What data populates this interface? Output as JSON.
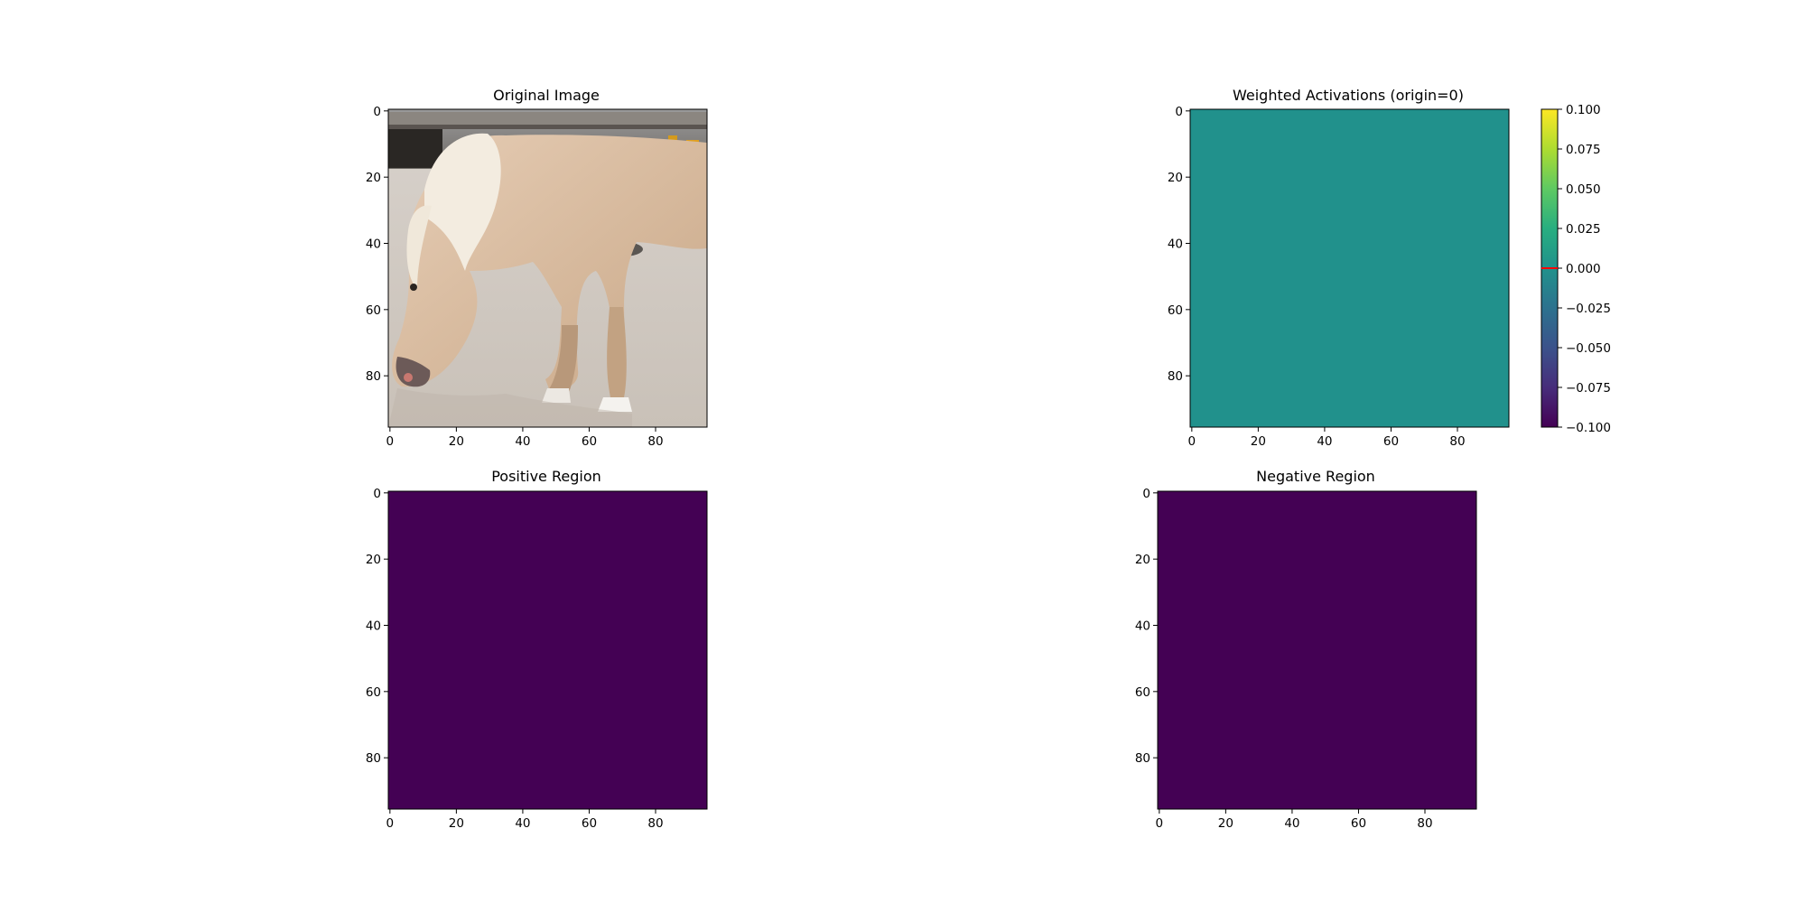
{
  "chart_data": [
    {
      "type": "image",
      "title": "Original Image",
      "content": "photo-horse",
      "xlim": [
        0,
        96
      ],
      "ylim": [
        96,
        0
      ],
      "xticks": [
        "0",
        "20",
        "40",
        "60",
        "80"
      ],
      "yticks": [
        "0",
        "20",
        "40",
        "60",
        "80"
      ]
    },
    {
      "type": "heatmap",
      "title": "Weighted Activations (origin=0)",
      "uniform_value": 0,
      "colormap": "viridis",
      "xlim": [
        0,
        96
      ],
      "ylim": [
        96,
        0
      ],
      "xticks": [
        "0",
        "20",
        "40",
        "60",
        "80"
      ],
      "yticks": [
        "0",
        "20",
        "40",
        "60",
        "80"
      ],
      "colorbar": {
        "range": [
          -0.1,
          0.1
        ],
        "ticks": [
          "−0.100",
          "−0.075",
          "−0.050",
          "−0.025",
          "0.000",
          "0.025",
          "0.050",
          "0.075",
          "0.100"
        ],
        "marker_value": 0,
        "marker_color": "#ff0000"
      }
    },
    {
      "type": "heatmap",
      "title": "Positive Region",
      "uniform_value": 0,
      "fill_color": "#440154",
      "xlim": [
        0,
        96
      ],
      "ylim": [
        96,
        0
      ],
      "xticks": [
        "0",
        "20",
        "40",
        "60",
        "80"
      ],
      "yticks": [
        "0",
        "20",
        "40",
        "60",
        "80"
      ]
    },
    {
      "type": "heatmap",
      "title": "Negative Region",
      "uniform_value": 0,
      "fill_color": "#440154",
      "xlim": [
        0,
        96
      ],
      "ylim": [
        96,
        0
      ],
      "xticks": [
        "0",
        "20",
        "40",
        "60",
        "80"
      ],
      "yticks": [
        "0",
        "20",
        "40",
        "60",
        "80"
      ]
    }
  ],
  "colors": {
    "viridis_mid": "#21918c",
    "viridis_low": "#440154",
    "viridis_high": "#fde725"
  }
}
